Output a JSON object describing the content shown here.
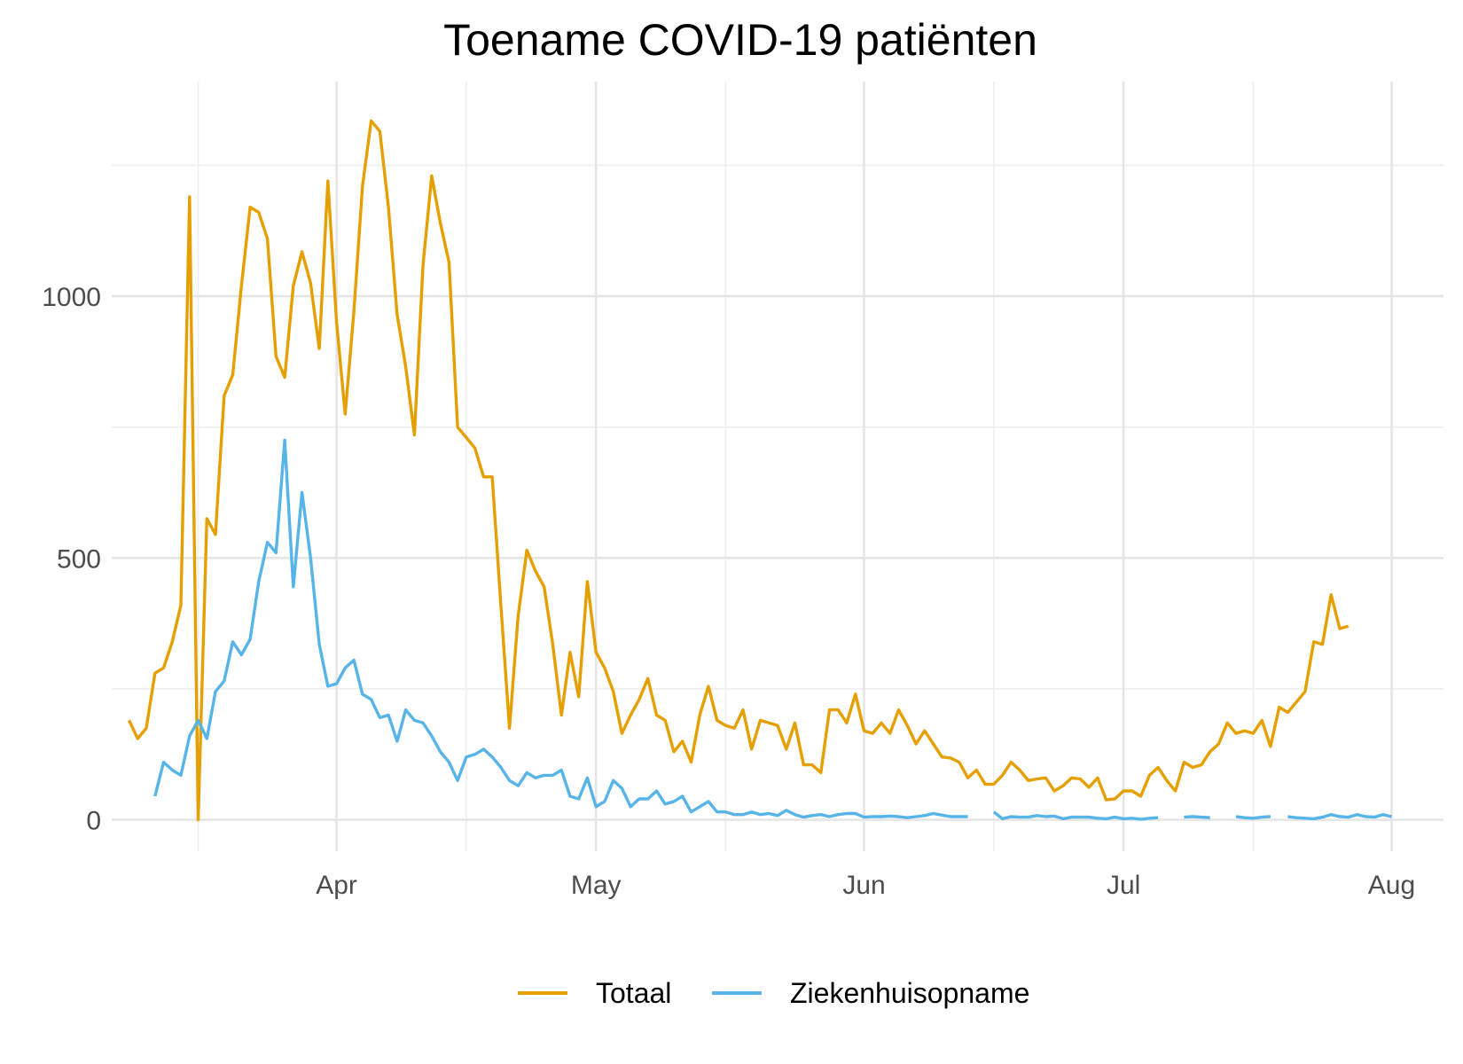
{
  "chart_data": {
    "type": "line",
    "title": "Toename COVID-19 patiënten",
    "xlabel": "",
    "ylabel": "",
    "x_start": "2020-03-08",
    "x_range": [
      "2020-03-06",
      "2020-08-07"
    ],
    "x_ticks": [
      {
        "date": "2020-04-01",
        "label": "Apr"
      },
      {
        "date": "2020-05-01",
        "label": "May"
      },
      {
        "date": "2020-06-01",
        "label": "Jun"
      },
      {
        "date": "2020-07-01",
        "label": "Jul"
      },
      {
        "date": "2020-08-01",
        "label": "Aug"
      }
    ],
    "x_minor_ticks": [
      "2020-03-16",
      "2020-04-16",
      "2020-05-16",
      "2020-06-16",
      "2020-07-16"
    ],
    "ylim": [
      -60,
      1410
    ],
    "y_ticks": [
      0,
      500,
      1000
    ],
    "y_minor_ticks": [
      250,
      750,
      1250
    ],
    "grid": true,
    "legend": "bottom",
    "series": [
      {
        "name": "Totaal",
        "color": "#E69F00",
        "values": [
          190,
          155,
          175,
          280,
          290,
          340,
          410,
          1190,
          0,
          575,
          545,
          810,
          850,
          1020,
          1170,
          1160,
          1110,
          885,
          845,
          1020,
          1085,
          1025,
          900,
          1220,
          950,
          775,
          970,
          1210,
          1335,
          1315,
          1170,
          965,
          865,
          735,
          1060,
          1230,
          1140,
          1065,
          750,
          730,
          710,
          655,
          655,
          410,
          175,
          390,
          515,
          475,
          445,
          335,
          200,
          320,
          235,
          455,
          320,
          290,
          245,
          165,
          200,
          230,
          270,
          200,
          190,
          130,
          150,
          110,
          200,
          255,
          190,
          180,
          175,
          210,
          135,
          190,
          185,
          180,
          135,
          185,
          105,
          105,
          90,
          210,
          210,
          185,
          240,
          170,
          165,
          185,
          165,
          210,
          180,
          145,
          170,
          145,
          120,
          118,
          110,
          80,
          95,
          68,
          68,
          85,
          110,
          95,
          75,
          78,
          80,
          55,
          65,
          80,
          78,
          62,
          80,
          38,
          40,
          55,
          55,
          45,
          85,
          100,
          75,
          55,
          110,
          100,
          105,
          130,
          145,
          185,
          165,
          170,
          165,
          190,
          140,
          215,
          205,
          225,
          245,
          340,
          335,
          430,
          365,
          370
        ],
        "bind": "legend.items.0.label"
      },
      {
        "name": "Ziekenhuisopname",
        "color": "#56B4E9",
        "values": [
          null,
          null,
          null,
          45,
          110,
          95,
          85,
          160,
          190,
          155,
          245,
          265,
          340,
          315,
          345,
          455,
          530,
          510,
          725,
          445,
          625,
          500,
          335,
          255,
          260,
          290,
          305,
          240,
          230,
          195,
          200,
          150,
          210,
          190,
          185,
          160,
          130,
          110,
          75,
          120,
          125,
          135,
          120,
          100,
          75,
          65,
          90,
          80,
          85,
          85,
          95,
          45,
          40,
          80,
          25,
          35,
          75,
          60,
          25,
          40,
          40,
          55,
          30,
          35,
          45,
          15,
          25,
          35,
          15,
          15,
          10,
          10,
          15,
          10,
          12,
          8,
          18,
          10,
          5,
          8,
          10,
          6,
          10,
          12,
          12,
          5,
          6,
          6,
          7,
          6,
          4,
          6,
          8,
          12,
          9,
          6,
          6,
          6,
          null,
          null,
          15,
          2,
          6,
          5,
          5,
          8,
          6,
          7,
          2,
          5,
          5,
          5,
          3,
          2,
          5,
          2,
          3,
          1,
          3,
          4,
          null,
          null,
          5,
          6,
          5,
          4,
          null,
          null,
          6,
          4,
          3,
          5,
          6,
          null,
          6,
          4,
          3,
          2,
          5,
          10,
          6,
          5,
          10,
          6,
          5,
          10,
          6
        ]
      }
    ]
  },
  "legend": {
    "items": [
      {
        "label": "Totaal",
        "color": "#E69F00"
      },
      {
        "label": "Ziekenhuisopname",
        "color": "#56B4E9"
      }
    ]
  }
}
